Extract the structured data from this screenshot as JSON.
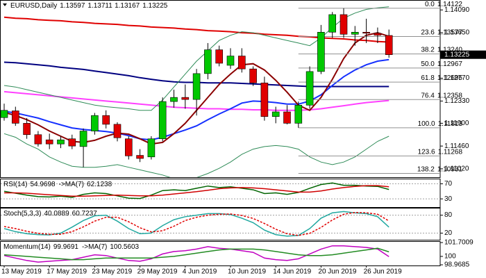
{
  "chart_data": [
    {
      "type": "candlestick",
      "symbol": "EURUSD,Daily",
      "categories": [
        "13 May 2019",
        null,
        null,
        null,
        "17 May 2019",
        null,
        null,
        null,
        "23 May 2019",
        null,
        null,
        null,
        "29 May 2019",
        null,
        null,
        null,
        "4 Jun 2019",
        null,
        null,
        null,
        "10 Jun 2019",
        null,
        null,
        null,
        "14 Jun 2019",
        null,
        null,
        null,
        "20 Jun 2019",
        null,
        null,
        null,
        "26 Jun 2019",
        null,
        null
      ],
      "open": [
        1.1201,
        1.1214,
        1.119,
        1.1168,
        1.1158,
        1.115,
        1.116,
        1.1145,
        1.1175,
        1.1205,
        1.1188,
        1.116,
        1.1128,
        1.1125,
        1.116,
        1.1232,
        1.124,
        1.1236,
        1.1286,
        1.1332,
        1.1302,
        1.132,
        1.1295,
        1.1268,
        1.1203,
        1.1212,
        1.119,
        1.1225,
        1.129,
        1.1366,
        1.14,
        1.1362,
        1.1366,
        1.1364,
        1.13597
      ],
      "high": [
        1.1228,
        1.1222,
        1.12,
        1.1175,
        1.117,
        1.1165,
        1.1168,
        1.118,
        1.121,
        1.1215,
        1.1192,
        1.1165,
        1.114,
        1.1165,
        1.124,
        1.1255,
        1.1265,
        1.1295,
        1.1345,
        1.134,
        1.1335,
        1.1335,
        1.13,
        1.128,
        1.1222,
        1.1225,
        1.1232,
        1.13,
        1.138,
        1.1405,
        1.14122,
        1.1378,
        1.1392,
        1.1375,
        1.13711
      ],
      "low": [
        1.1195,
        1.1185,
        1.116,
        1.1145,
        1.114,
        1.1142,
        1.114,
        1.1105,
        1.1168,
        1.118,
        1.1155,
        1.112,
        1.1115,
        1.112,
        1.1155,
        1.122,
        1.1218,
        1.1205,
        1.1275,
        1.13,
        1.1295,
        1.1288,
        1.1262,
        1.1195,
        1.119,
        1.1188,
        1.11813,
        1.1218,
        1.1285,
        1.1355,
        1.1355,
        1.134,
        1.1345,
        1.1345,
        1.13167
      ],
      "close": [
        1.1215,
        1.119,
        1.1168,
        1.115,
        1.115,
        1.1158,
        1.1146,
        1.1175,
        1.1205,
        1.1188,
        1.1162,
        1.1127,
        1.1122,
        1.116,
        1.1232,
        1.124,
        1.1236,
        1.1286,
        1.1332,
        1.1306,
        1.132,
        1.1295,
        1.1268,
        1.1203,
        1.1212,
        1.119,
        1.1225,
        1.129,
        1.1366,
        1.14,
        1.1362,
        1.1366,
        1.1364,
        1.136,
        1.13225
      ],
      "up_color": "#00c800",
      "down_color": "#e00000",
      "overlays": [
        {
          "color": "#e00000",
          "width": 2,
          "values": [
            1.1395,
            1.1393,
            1.1392,
            1.139,
            1.1389,
            1.1388,
            1.1386,
            1.1385,
            1.1383,
            1.1382,
            1.1381,
            1.1379,
            1.1378,
            1.1376,
            1.1375,
            1.1374,
            1.1372,
            1.1371,
            1.1369,
            1.1368,
            1.1367,
            1.1365,
            1.1364,
            1.1362,
            1.1361,
            1.136,
            1.1358,
            1.1357,
            1.1355,
            1.1354,
            1.1353,
            1.1351,
            1.135,
            1.1348,
            1.1347
          ]
        },
        {
          "color": "#000080",
          "width": 2,
          "values": [
            1.1308,
            1.1307,
            1.1305,
            1.1303,
            1.1301,
            1.1298,
            1.1296,
            1.1294,
            1.1291,
            1.1288,
            1.1285,
            1.1282,
            1.1278,
            1.1275,
            1.1272,
            1.127,
            1.1269,
            1.1269,
            1.1268,
            1.1268,
            1.1268,
            1.1267,
            1.1266,
            1.1265,
            1.1264,
            1.1263,
            1.1262,
            1.1261,
            1.1261,
            1.1261,
            1.1261,
            1.1261,
            1.1261,
            1.1261,
            1.1261
          ]
        },
        {
          "color": "#ff40ff",
          "width": 2,
          "values": [
            1.1251,
            1.1249,
            1.1247,
            1.1245,
            1.1243,
            1.1241,
            1.1239,
            1.1237,
            1.1235,
            1.1233,
            1.1231,
            1.1229,
            1.1227,
            1.1225,
            1.1223,
            1.1221,
            1.122,
            1.1219,
            1.1218,
            1.1218,
            1.1217,
            1.1217,
            1.1216,
            1.1216,
            1.1215,
            1.1215,
            1.1215,
            1.1216,
            1.1218,
            1.1221,
            1.1224,
            1.1227,
            1.123,
            1.1232,
            1.1234
          ]
        },
        {
          "color": "#2e8b57",
          "width": 1,
          "values": [
            1.1263,
            1.126,
            1.1255,
            1.125,
            1.1245,
            1.124,
            1.1235,
            1.123,
            1.1225,
            1.1222,
            1.122,
            1.1218,
            1.1215,
            1.1215,
            1.1235,
            1.126,
            1.1285,
            1.131,
            1.133,
            1.135,
            1.136,
            1.1367,
            1.1365,
            1.136,
            1.1355,
            1.135,
            1.1345,
            1.134,
            1.1355,
            1.1375,
            1.1393,
            1.1403,
            1.141,
            1.1413,
            1.1415
          ]
        },
        {
          "color": "#2e8b57",
          "width": 1,
          "values": [
            1.117,
            1.1163,
            1.115,
            1.114,
            1.1125,
            1.1115,
            1.1107,
            1.1105,
            1.1105,
            1.1107,
            1.111,
            1.1105,
            1.11,
            1.1095,
            1.109,
            1.1083,
            1.108,
            1.1085,
            1.1093,
            1.1103,
            1.1115,
            1.113,
            1.114,
            1.1145,
            1.1147,
            1.1145,
            1.114,
            1.1125,
            1.1115,
            1.111,
            1.1115,
            1.1125,
            1.114,
            1.1155,
            1.1165
          ]
        },
        {
          "color": "#1530ff",
          "width": 2,
          "values": [
            1.1213,
            1.121,
            1.1205,
            1.12,
            1.1193,
            1.1187,
            1.1181,
            1.1178,
            1.1176,
            1.1174,
            1.1171,
            1.1166,
            1.116,
            1.1158,
            1.1163,
            1.117,
            1.1177,
            1.1185,
            1.1197,
            1.1208,
            1.1218,
            1.1229,
            1.1233,
            1.1232,
            1.123,
            1.1227,
            1.1227,
            1.1233,
            1.1245,
            1.1263,
            1.128,
            1.1293,
            1.1303,
            1.131,
            1.1313
          ]
        },
        {
          "color": "#8b0000",
          "width": 2,
          "values": [
            1.1211,
            1.1205,
            1.1197,
            1.1187,
            1.1175,
            1.1165,
            1.1155,
            1.1153,
            1.1157,
            1.1165,
            1.1171,
            1.1169,
            1.116,
            1.115,
            1.1153,
            1.117,
            1.119,
            1.1215,
            1.124,
            1.1265,
            1.1285,
            1.1303,
            1.1305,
            1.1293,
            1.1273,
            1.125,
            1.1225,
            1.1215,
            1.124,
            1.1275,
            1.1315,
            1.1345,
            1.136,
            1.1365,
            1.1358
          ]
        }
      ],
      "fibonacci": {
        "color": "#909090",
        "levels": [
          {
            "ratio": "0.0",
            "price": 1.14122
          },
          {
            "ratio": "23.6",
            "price": 1.13577
          },
          {
            "ratio": "38.2",
            "price": {
              "value": 1.1324,
              "label": "1.13240"
            }
          },
          {
            "ratio": "50.0",
            "price": 1.12967
          },
          {
            "ratio": "61.8",
            "price": 1.12695
          },
          {
            "ratio": "76.4",
            "price": 1.12358
          },
          {
            "ratio": "100.0",
            "price": 1.11813
          },
          {
            "ratio": "123.6",
            "price": 1.11268
          },
          {
            "ratio": "138.2",
            "price": 1.10931
          }
        ]
      },
      "ylim": [
        1.10871,
        1.14255
      ],
      "yticks": [
        {
          "value": 1.1409,
          "label": "1.14090"
        },
        {
          "value": 1.1365,
          "label": "1.13650"
        },
        {
          "value": 1.1277,
          "label": "1.12770"
        },
        {
          "value": 1.1233,
          "label": "1.12330"
        },
        {
          "value": 1.119,
          "label": "1.11900"
        },
        {
          "value": 1.1146,
          "label": "1.11460"
        },
        {
          "value": 1.1102,
          "label": "1.11020"
        }
      ],
      "grid": false
    },
    {
      "type": "line",
      "ylim": [
        10,
        80
      ],
      "yticks": [
        70,
        30
      ],
      "grid": true,
      "series": [
        {
          "name": "RSI(14)",
          "color": "#006400",
          "style": "solid",
          "values": [
            50,
            45,
            40,
            36,
            35,
            37,
            34,
            42,
            46,
            44,
            38,
            32,
            31,
            40,
            52,
            54,
            52,
            58,
            64,
            60,
            62,
            58,
            54,
            44,
            46,
            42,
            47,
            58,
            68,
            72,
            66,
            66,
            64,
            63,
            54.9698
          ]
        },
        {
          "name": "->MA(7)",
          "color": "#d00000",
          "style": "solid",
          "values": [
            46,
            46,
            45,
            43,
            41,
            39,
            37,
            37,
            38,
            39,
            40,
            39,
            38,
            38,
            40,
            43,
            46,
            49,
            53,
            57,
            59,
            60,
            59,
            57,
            54,
            51,
            48,
            48,
            51,
            56,
            60,
            63,
            65,
            65,
            62.1238
          ]
        }
      ]
    },
    {
      "type": "line",
      "ylim": [
        0,
        100
      ],
      "yticks": [
        80,
        20
      ],
      "grid": true,
      "series": [
        {
          "name": "Stoch(5,3,3)",
          "color": "#20a8a0",
          "style": "solid",
          "values": [
            35,
            25,
            18,
            15,
            14,
            20,
            40,
            62,
            78,
            80,
            60,
            35,
            18,
            20,
            45,
            65,
            75,
            80,
            85,
            85,
            82,
            70,
            55,
            30,
            15,
            10,
            12,
            35,
            70,
            88,
            92,
            88,
            85,
            75,
            40.0889
          ]
        },
        {
          "color": "#e00000",
          "style": "dashed",
          "values": [
            42,
            35,
            26,
            19,
            16,
            16,
            25,
            41,
            60,
            73,
            73,
            58,
            38,
            24,
            28,
            43,
            62,
            73,
            80,
            83,
            84,
            79,
            69,
            52,
            33,
            18,
            12,
            19,
            39,
            64,
            83,
            89,
            88,
            83,
            60.7237
          ]
        }
      ]
    },
    {
      "type": "line",
      "ylim": [
        98.9685,
        101.7009
      ],
      "yticks": [
        101.7009,
        100,
        98.9685
      ],
      "grid": false,
      "series": [
        {
          "name": "Momentum(14)",
          "color": "#c000c0",
          "style": "solid",
          "values": [
            100.1,
            99.8,
            99.5,
            99.3,
            99.4,
            99.5,
            99.6,
            99.9,
            100.2,
            100.1,
            99.8,
            99.5,
            99.4,
            99.7,
            100.3,
            100.6,
            100.7,
            100.9,
            101.2,
            101.0,
            100.9,
            100.7,
            100.5,
            99.8,
            99.6,
            99.5,
            99.7,
            100.3,
            100.9,
            101.3,
            101.3,
            101.2,
            101.1,
            100.9,
            99.9691
          ]
        },
        {
          "name": "->MA(7)",
          "color": "#228b22",
          "style": "solid",
          "values": [
            100.2,
            100.1,
            100.0,
            99.9,
            99.8,
            99.7,
            99.6,
            99.6,
            99.7,
            99.8,
            99.8,
            99.8,
            99.8,
            99.8,
            99.9,
            100.0,
            100.2,
            100.4,
            100.6,
            100.8,
            100.9,
            100.9,
            100.9,
            100.8,
            100.6,
            100.4,
            100.2,
            100.1,
            100.1,
            100.2,
            100.4,
            100.6,
            100.8,
            101.0,
            100.5603
          ]
        }
      ]
    }
  ]
}
